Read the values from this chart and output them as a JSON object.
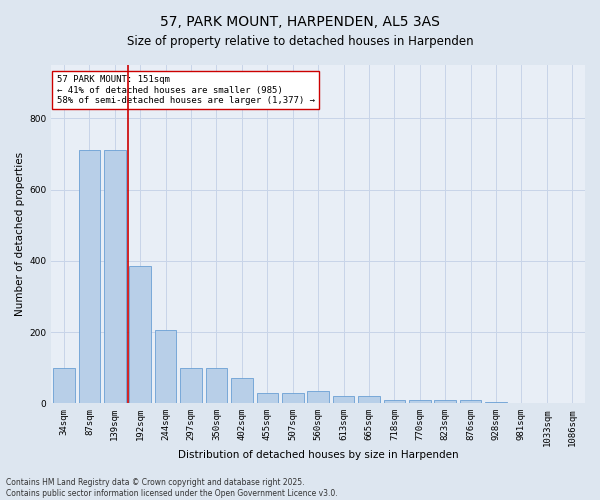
{
  "title": "57, PARK MOUNT, HARPENDEN, AL5 3AS",
  "subtitle": "Size of property relative to detached houses in Harpenden",
  "xlabel": "Distribution of detached houses by size in Harpenden",
  "ylabel": "Number of detached properties",
  "categories": [
    "34sqm",
    "87sqm",
    "139sqm",
    "192sqm",
    "244sqm",
    "297sqm",
    "350sqm",
    "402sqm",
    "455sqm",
    "507sqm",
    "560sqm",
    "613sqm",
    "665sqm",
    "718sqm",
    "770sqm",
    "823sqm",
    "876sqm",
    "928sqm",
    "981sqm",
    "1033sqm",
    "1086sqm"
  ],
  "values": [
    100,
    710,
    710,
    385,
    205,
    100,
    100,
    72,
    30,
    30,
    35,
    20,
    20,
    10,
    10,
    10,
    10,
    5,
    0,
    0,
    0
  ],
  "bar_color": "#b8cfe8",
  "bar_edge_color": "#6a9fd4",
  "vline_color": "#cc0000",
  "annotation_text": "57 PARK MOUNT: 151sqm\n← 41% of detached houses are smaller (985)\n58% of semi-detached houses are larger (1,377) →",
  "annotation_box_color": "#ffffff",
  "annotation_box_edge": "#cc0000",
  "annotation_fontsize": 6.5,
  "title_fontsize": 10,
  "subtitle_fontsize": 8.5,
  "ylabel_fontsize": 7.5,
  "xlabel_fontsize": 7.5,
  "tick_fontsize": 6.5,
  "grid_color": "#c8d4e8",
  "background_color": "#dde6f0",
  "plot_bg_color": "#e8eef6",
  "footer": "Contains HM Land Registry data © Crown copyright and database right 2025.\nContains public sector information licensed under the Open Government Licence v3.0.",
  "footer_fontsize": 5.5,
  "ylim": [
    0,
    950
  ]
}
